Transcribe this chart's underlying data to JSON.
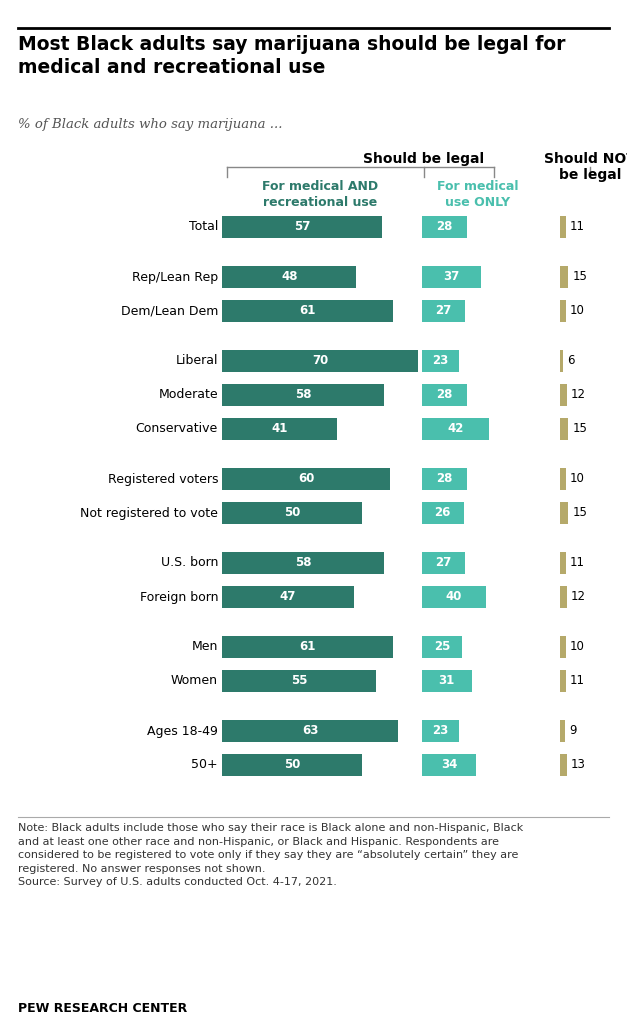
{
  "title": "Most Black adults say marijuana should be legal for\nmedical and recreational use",
  "subtitle": "% of Black adults who say marijuana ...",
  "header_legal": "Should be legal",
  "header_col1": "For medical AND\nrecreational use",
  "header_col2": "For medical\nuse ONLY",
  "header_col3": "Should NOT\nbe legal",
  "categories": [
    "Total",
    "Rep/Lean Rep",
    "Dem/Lean Dem",
    "Liberal",
    "Moderate",
    "Conservative",
    "Registered voters",
    "Not registered to vote",
    "U.S. born",
    "Foreign born",
    "Men",
    "Women",
    "Ages 18-49",
    "50+"
  ],
  "col1_values": [
    57,
    48,
    61,
    70,
    58,
    41,
    60,
    50,
    58,
    47,
    61,
    55,
    63,
    50
  ],
  "col2_values": [
    28,
    37,
    27,
    23,
    28,
    42,
    28,
    26,
    27,
    40,
    25,
    31,
    23,
    34
  ],
  "col3_values": [
    11,
    15,
    10,
    6,
    12,
    15,
    10,
    15,
    11,
    12,
    10,
    11,
    9,
    13
  ],
  "groups": [
    1,
    2,
    3,
    2,
    2,
    2,
    2
  ],
  "color_col1": "#2d7a6b",
  "color_col2": "#4abfad",
  "color_col3": "#b5a96a",
  "note": "Note: Black adults include those who say their race is Black alone and non-Hispanic, Black\nand at least one other race and non-Hispanic, or Black and Hispanic. Respondents are\nconsidered to be registered to vote only if they say they are “absolutely certain” they are\nregistered. No answer responses not shown.\nSource: Survey of U.S. adults conducted Oct. 4-17, 2021.",
  "source_bold": "PEW RESEARCH CENTER",
  "background_color": "#ffffff"
}
